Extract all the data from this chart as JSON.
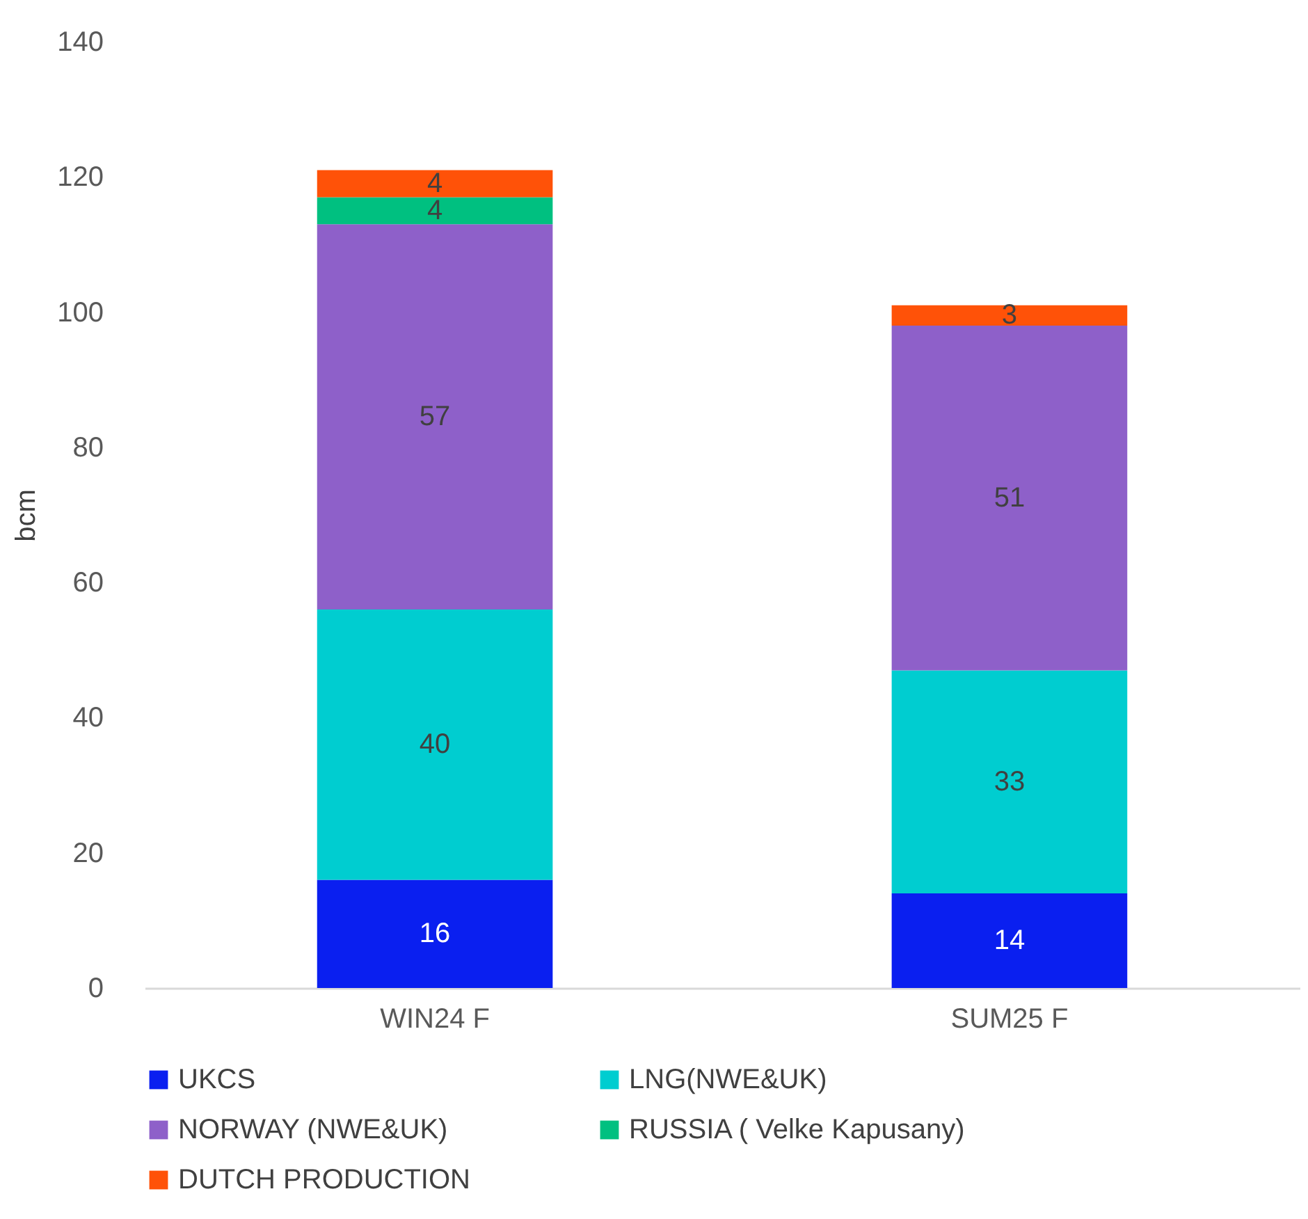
{
  "chart_data": {
    "type": "bar",
    "stacked": true,
    "ylabel": "bcm",
    "categories": [
      "WIN24 F",
      "SUM25 F"
    ],
    "series": [
      {
        "name": "UKCS",
        "color": "#0a1ff0",
        "values": [
          16,
          14
        ]
      },
      {
        "name": "LNG(NWE&UK)",
        "color": "#00cdd0",
        "values": [
          40,
          33
        ]
      },
      {
        "name": "NORWAY (NWE&UK)",
        "color": "#8e60c9",
        "values": [
          57,
          51
        ]
      },
      {
        "name": "RUSSIA ( Velke Kapusany)",
        "color": "#00c080",
        "values": [
          4,
          null
        ]
      },
      {
        "name": "DUTCH PRODUCTION",
        "color": "#ff5208",
        "values": [
          4,
          3
        ]
      }
    ],
    "ylim": [
      0,
      140
    ],
    "yticks": [
      0,
      20,
      40,
      60,
      80,
      100,
      120,
      140
    ],
    "data_labels": true,
    "legend": "bottom",
    "grid": false
  }
}
